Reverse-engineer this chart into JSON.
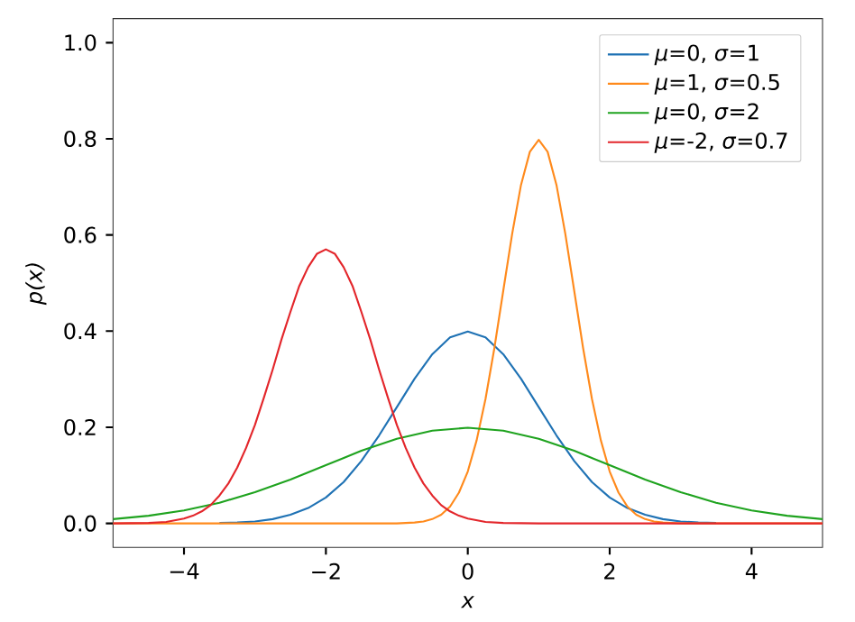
{
  "chart_data": {
    "type": "line",
    "xlabel": "x",
    "ylabel": "p(x)",
    "xlim": [
      -5,
      5
    ],
    "ylim": [
      -0.05,
      1.05
    ],
    "xticks": [
      {
        "value": -4,
        "label": "−4"
      },
      {
        "value": -2,
        "label": "−2"
      },
      0,
      2,
      4
    ],
    "yticks": [
      {
        "value": 0,
        "label": "0.0"
      },
      {
        "value": 0.2,
        "label": "0.2"
      },
      {
        "value": 0.4,
        "label": "0.4"
      },
      {
        "value": 0.6,
        "label": "0.6"
      },
      {
        "value": 0.8,
        "label": "0.8"
      },
      {
        "value": 1.0,
        "label": "1.0"
      }
    ],
    "grid": false,
    "legend": "top right",
    "line_style": "solid",
    "marker": "none",
    "series": [
      {
        "name": "*μ*=0, *σ*=1",
        "color": "#1f72b4",
        "x": [
          -3.5,
          -3.25,
          -3,
          -2.75,
          -2.5,
          -2.25,
          -2,
          -1.75,
          -1.5,
          -1.25,
          -1,
          -0.75,
          -0.5,
          -0.25,
          0,
          0.25,
          0.5,
          0.75,
          1,
          1.25,
          1.5,
          1.75,
          2,
          2.25,
          2.5,
          2.75,
          3,
          3.25,
          3.5
        ],
        "values": [
          0.001,
          0.002,
          0.004,
          0.009,
          0.018,
          0.032,
          0.054,
          0.086,
          0.13,
          0.183,
          0.242,
          0.301,
          0.352,
          0.387,
          0.399,
          0.387,
          0.352,
          0.301,
          0.242,
          0.183,
          0.13,
          0.086,
          0.054,
          0.032,
          0.018,
          0.009,
          0.004,
          0.002,
          0.001
        ]
      },
      {
        "name": "*μ*=1, *σ*=0.5",
        "color": "#ff8a1c",
        "x": [
          -5,
          -1,
          -0.875,
          -0.75,
          -0.625,
          -0.5,
          -0.375,
          -0.25,
          -0.125,
          0,
          0.125,
          0.25,
          0.375,
          0.5,
          0.625,
          0.75,
          0.875,
          1,
          1.125,
          1.25,
          1.375,
          1.5,
          1.625,
          1.75,
          1.875,
          2,
          2.125,
          2.25,
          2.375,
          2.5,
          2.625,
          2.75,
          2.875,
          3,
          5
        ],
        "values": [
          0,
          0,
          0.001,
          0.002,
          0.004,
          0.009,
          0.018,
          0.035,
          0.064,
          0.108,
          0.173,
          0.259,
          0.365,
          0.484,
          0.602,
          0.704,
          0.773,
          0.798,
          0.773,
          0.704,
          0.602,
          0.484,
          0.365,
          0.259,
          0.173,
          0.108,
          0.064,
          0.035,
          0.018,
          0.009,
          0.004,
          0.002,
          0.001,
          0,
          0
        ]
      },
      {
        "name": "*μ*=0, *σ*=2",
        "color": "#1fa31f",
        "x": [
          -5,
          -4.5,
          -4,
          -3.5,
          -3,
          -2.5,
          -2,
          -1.5,
          -1,
          -0.5,
          0,
          0.5,
          1,
          1.5,
          2,
          2.5,
          3,
          3.5,
          4,
          4.5,
          5
        ],
        "values": [
          0.009,
          0.016,
          0.027,
          0.043,
          0.065,
          0.091,
          0.121,
          0.151,
          0.176,
          0.193,
          0.199,
          0.193,
          0.176,
          0.151,
          0.121,
          0.091,
          0.065,
          0.043,
          0.027,
          0.016,
          0.009
        ]
      },
      {
        "name": "*μ*=-2, *σ*=0.7",
        "color": "#e3262b",
        "x": [
          -5,
          -4.5,
          -4.25,
          -4,
          -3.875,
          -3.75,
          -3.625,
          -3.5,
          -3.375,
          -3.25,
          -3.125,
          -3,
          -2.875,
          -2.75,
          -2.625,
          -2.5,
          -2.375,
          -2.25,
          -2.125,
          -2,
          -1.875,
          -1.75,
          -1.625,
          -1.5,
          -1.375,
          -1.25,
          -1.125,
          -1,
          -0.875,
          -0.75,
          -0.625,
          -0.5,
          -0.375,
          -0.25,
          -0.125,
          0,
          0.25,
          0.5,
          1,
          5
        ],
        "values": [
          0,
          0.001,
          0.003,
          0.01,
          0.016,
          0.025,
          0.038,
          0.058,
          0.083,
          0.116,
          0.157,
          0.205,
          0.261,
          0.32,
          0.383,
          0.44,
          0.494,
          0.533,
          0.561,
          0.57,
          0.561,
          0.533,
          0.494,
          0.44,
          0.383,
          0.32,
          0.261,
          0.205,
          0.157,
          0.116,
          0.083,
          0.058,
          0.038,
          0.025,
          0.016,
          0.01,
          0.003,
          0.001,
          0,
          0
        ]
      }
    ]
  }
}
